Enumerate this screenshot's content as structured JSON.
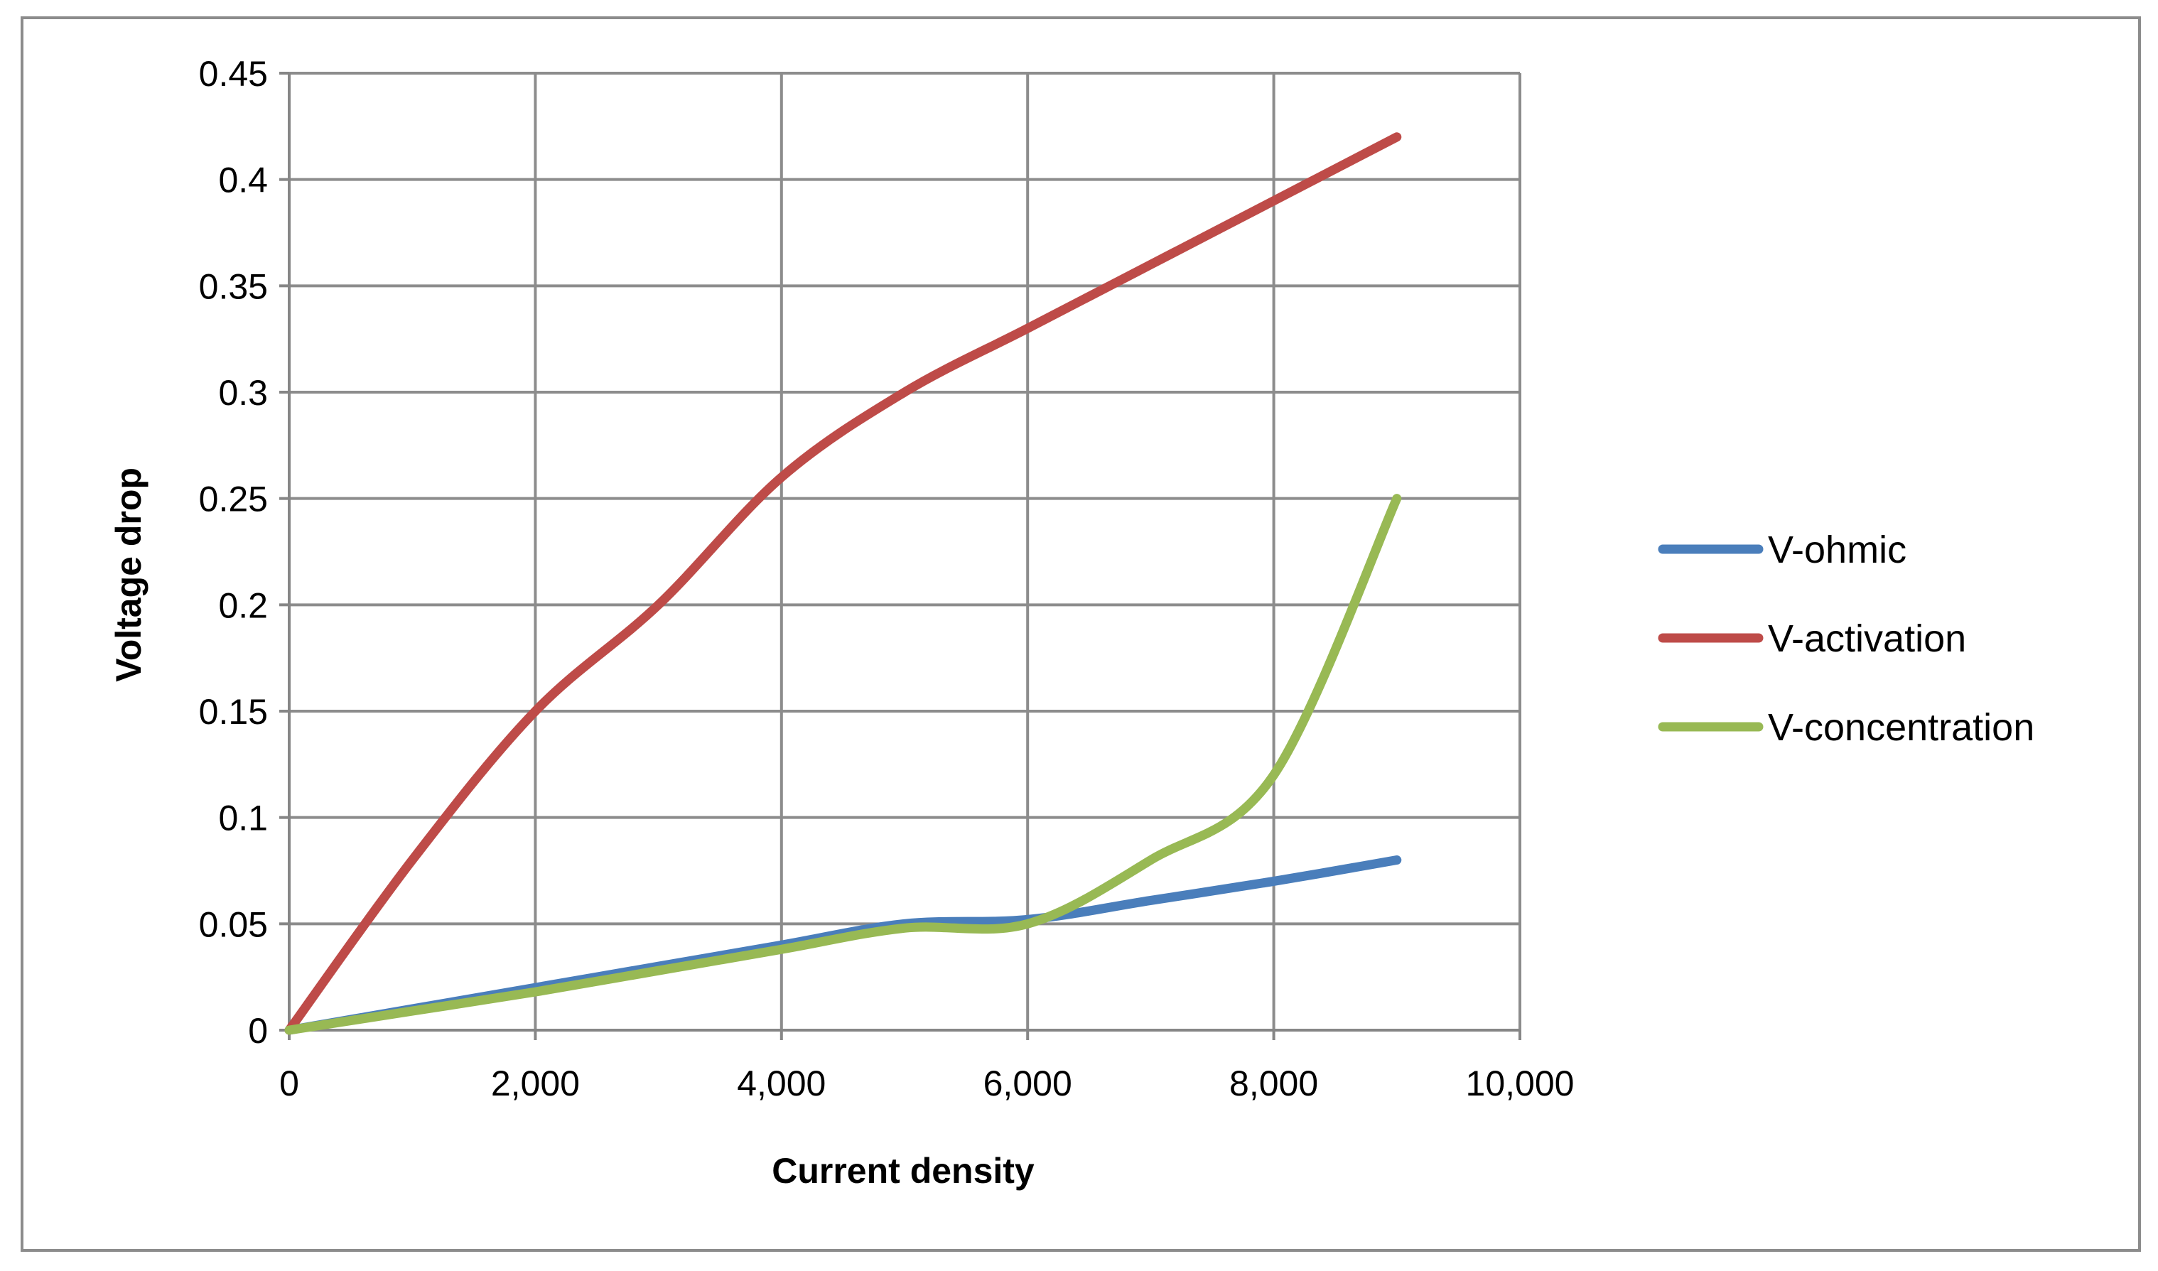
{
  "chart_data": {
    "type": "line",
    "xlabel": "Current density",
    "ylabel": "Voltage drop",
    "xlim": [
      0,
      10000
    ],
    "ylim": [
      0,
      0.45
    ],
    "x_ticks": [
      0,
      2000,
      4000,
      6000,
      8000,
      10000
    ],
    "x_tick_labels": [
      "0",
      "2,000",
      "4,000",
      "6,000",
      "8,000",
      "10,000"
    ],
    "y_ticks": [
      0,
      0.05,
      0.1,
      0.15,
      0.2,
      0.25,
      0.3,
      0.35,
      0.4,
      0.45
    ],
    "y_tick_labels": [
      "0",
      "0.05",
      "0.1",
      "0.15",
      "0.2",
      "0.25",
      "0.3",
      "0.35",
      "0.4",
      "0.45"
    ],
    "grid": true,
    "legend_position": "right",
    "series": [
      {
        "name": "V-ohmic",
        "color": "#4a7ebb",
        "points": [
          [
            0,
            0
          ],
          [
            1000,
            0.01
          ],
          [
            2000,
            0.02
          ],
          [
            3000,
            0.03
          ],
          [
            4000,
            0.04
          ],
          [
            5000,
            0.05
          ],
          [
            6000,
            0.052
          ],
          [
            7000,
            0.061
          ],
          [
            8000,
            0.07
          ],
          [
            9000,
            0.08
          ]
        ]
      },
      {
        "name": "V-activation",
        "color": "#be4b48",
        "points": [
          [
            0,
            0
          ],
          [
            1000,
            0.08
          ],
          [
            2000,
            0.15
          ],
          [
            3000,
            0.2
          ],
          [
            4000,
            0.26
          ],
          [
            5000,
            0.3
          ],
          [
            6000,
            0.33
          ],
          [
            7000,
            0.36
          ],
          [
            8000,
            0.39
          ],
          [
            9000,
            0.42
          ]
        ]
      },
      {
        "name": "V-concentration",
        "color": "#98b954",
        "points": [
          [
            0,
            0
          ],
          [
            1000,
            0.009
          ],
          [
            2000,
            0.018
          ],
          [
            3000,
            0.028
          ],
          [
            4000,
            0.038
          ],
          [
            5000,
            0.048
          ],
          [
            6000,
            0.05
          ],
          [
            7000,
            0.08
          ],
          [
            8000,
            0.12
          ],
          [
            9000,
            0.25
          ]
        ]
      }
    ]
  }
}
